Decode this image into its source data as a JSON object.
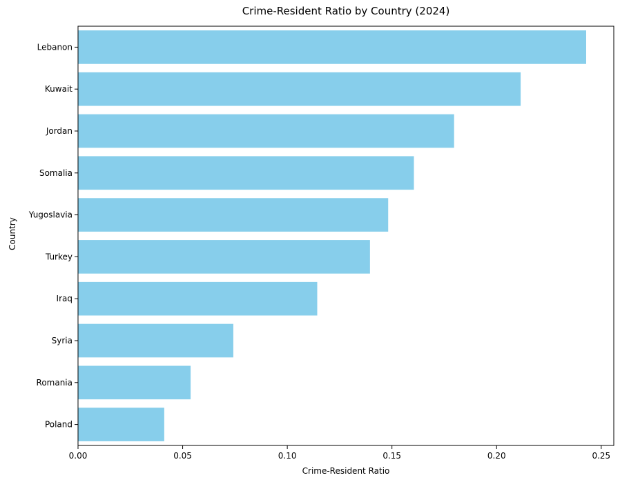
{
  "chart_data": {
    "type": "bar",
    "orientation": "horizontal",
    "title": "Crime-Resident Ratio by Country (2024)",
    "xlabel": "Crime-Resident Ratio",
    "ylabel": "Country",
    "categories": [
      "Lebanon",
      "Kuwait",
      "Jordan",
      "Somalia",
      "Yugoslavia",
      "Turkey",
      "Iraq",
      "Syria",
      "Romania",
      "Poland"
    ],
    "values": [
      0.2428,
      0.2115,
      0.1797,
      0.1605,
      0.1482,
      0.1395,
      0.1143,
      0.0742,
      0.0538,
      0.0412
    ],
    "xlim": [
      0,
      0.256
    ],
    "xticks": [
      0.0,
      0.05,
      0.1,
      0.15,
      0.2,
      0.25
    ],
    "xtick_labels": [
      "0.00",
      "0.05",
      "0.10",
      "0.15",
      "0.20",
      "0.25"
    ],
    "grid": false,
    "legend": false,
    "bar_color": "#87ceeb"
  }
}
